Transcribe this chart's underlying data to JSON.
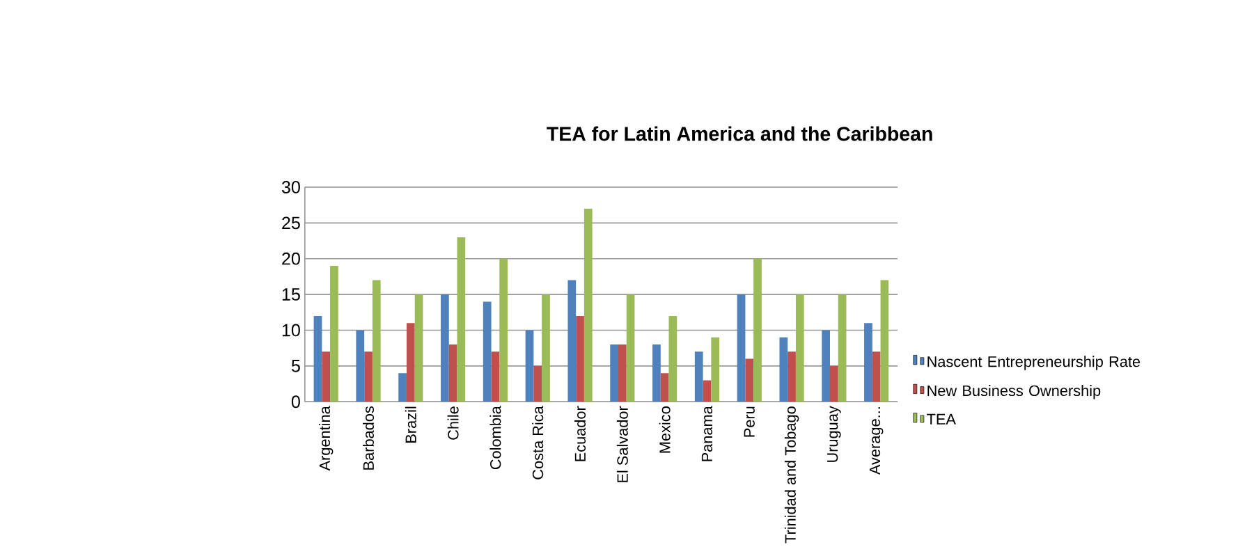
{
  "chart_data": {
    "type": "bar",
    "title": "TEA for Latin America and the Caribbean",
    "categories": [
      "Argentina",
      "Barbados",
      "Brazil",
      "Chile",
      "Colombia",
      "Costa Rica",
      "Ecuador",
      "El Salvador",
      "Mexico",
      "Panama",
      "Peru",
      "Trinidad and Tobago",
      "Uruguay",
      "Average..."
    ],
    "series": [
      {
        "name": "Nascent Entrepreneurship Rate",
        "color": "#4f81bd",
        "values": [
          12,
          10,
          4,
          15,
          14,
          10,
          17,
          8,
          8,
          7,
          15,
          9,
          10,
          11
        ]
      },
      {
        "name": "New Business Ownership",
        "color": "#c0504d",
        "values": [
          7,
          7,
          11,
          8,
          7,
          5,
          12,
          8,
          4,
          3,
          6,
          7,
          5,
          7
        ]
      },
      {
        "name": "TEA",
        "color": "#9bbb59",
        "values": [
          19,
          17,
          15,
          23,
          20,
          15,
          27,
          15,
          12,
          9,
          20,
          15,
          15,
          17
        ]
      }
    ],
    "ylim": [
      0,
      30
    ],
    "yticks": [
      0,
      5,
      10,
      15,
      20,
      25,
      30
    ],
    "grid": "y",
    "legend": "right"
  }
}
